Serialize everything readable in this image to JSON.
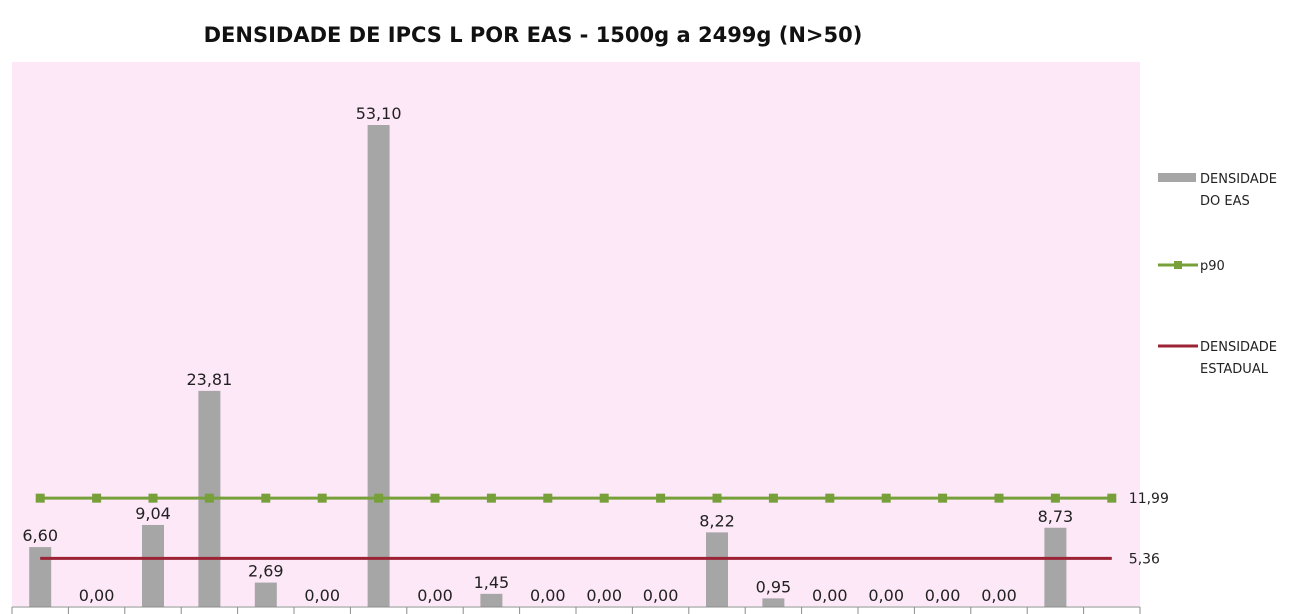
{
  "chart_data": {
    "type": "bar",
    "title": "DENSIDADE DE IPCS L  POR EAS - 1500g a 2499g (N>50)",
    "xlabel": "",
    "ylabel": "",
    "ylim": [
      0,
      56
    ],
    "grid": false,
    "legend_position": "right",
    "plot_background": "#fde8f8",
    "series": [
      {
        "name": "DENSIDADE DO EAS",
        "kind": "bar",
        "color": "#a6a6a6",
        "values": [
          6.6,
          0.0,
          9.04,
          23.81,
          2.69,
          0.0,
          53.1,
          0.0,
          1.45,
          0.0,
          0.0,
          0.0,
          8.22,
          0.95,
          0.0,
          0.0,
          0.0,
          0.0,
          8.73,
          null
        ],
        "labels": [
          "6,60",
          "0,00",
          "9,04",
          "23,81",
          "2,69",
          "0,00",
          "53,10",
          "0,00",
          "1,45",
          "0,00",
          "0,00",
          "0,00",
          "8,22",
          "0,95",
          "0,00",
          "0,00",
          "0,00",
          "0,00",
          "8,73",
          ""
        ]
      },
      {
        "name": "p90",
        "kind": "line",
        "color": "#77a03a",
        "value": 11.99,
        "label": "11,99"
      },
      {
        "name": "DENSIDADE ESTADUAL",
        "kind": "line",
        "color": "#9b2335",
        "value": 5.36,
        "label": "5,36"
      }
    ],
    "legend": [
      {
        "lines": [
          "DENSIDADE",
          "DO EAS"
        ],
        "symbol": "bar"
      },
      {
        "lines": [
          "p90"
        ],
        "symbol": "line-marker"
      },
      {
        "lines": [
          "DENSIDADE",
          "ESTADUAL"
        ],
        "symbol": "line"
      }
    ]
  }
}
